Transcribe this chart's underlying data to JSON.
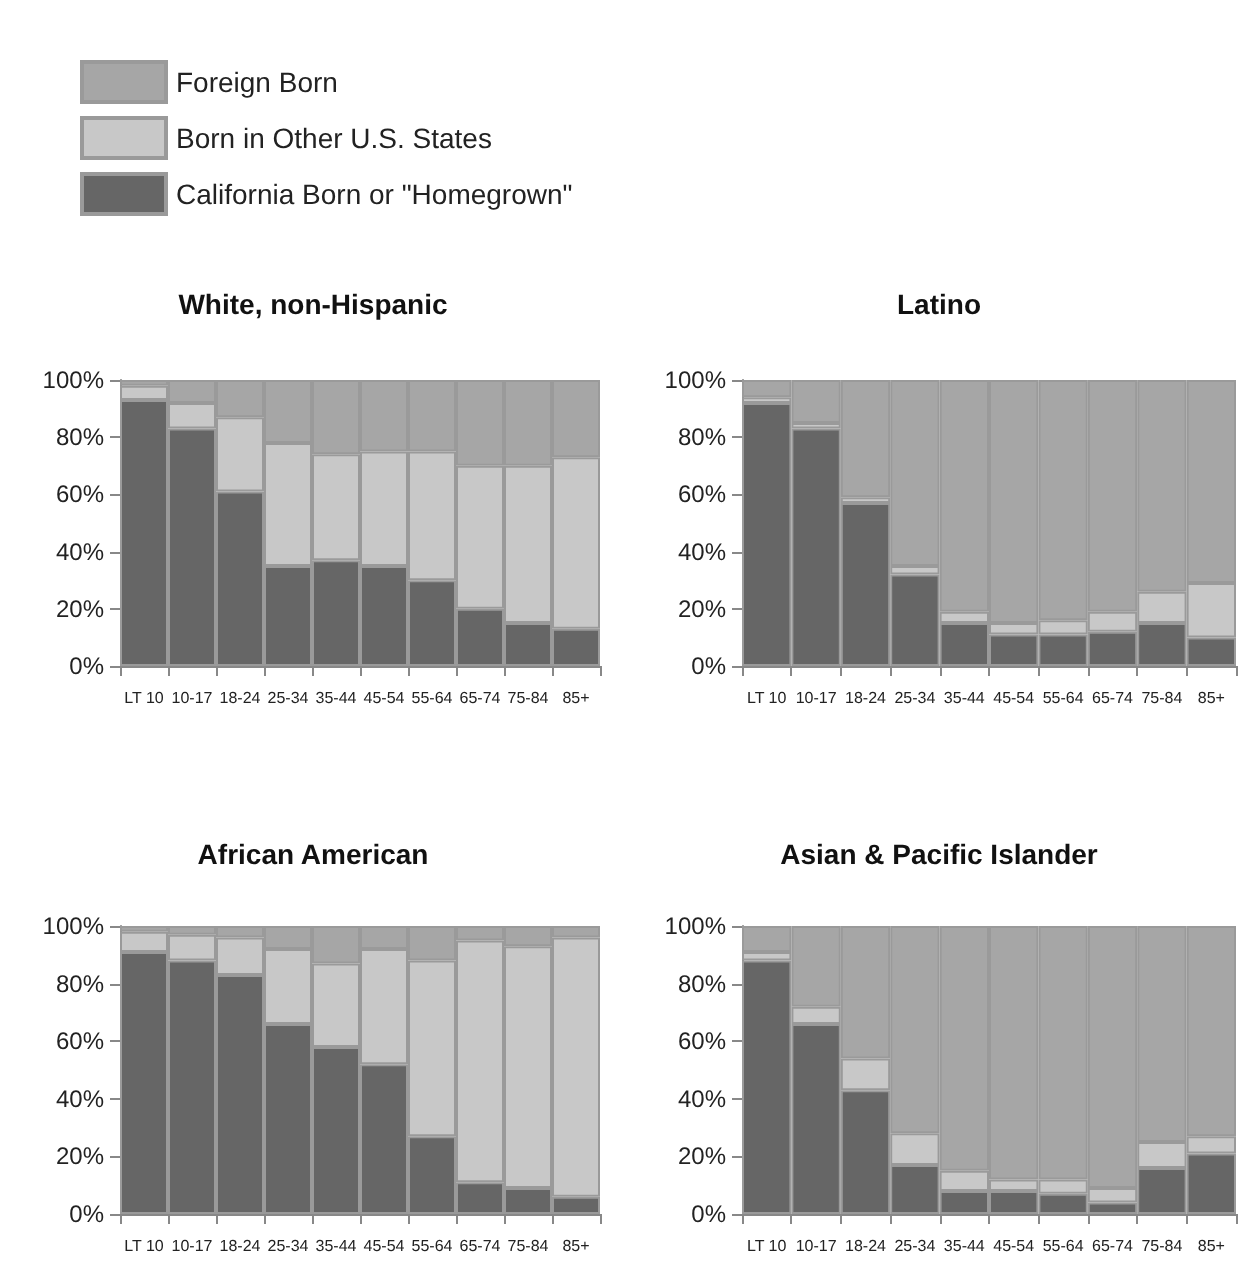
{
  "chart_data": [
    {
      "type": "bar",
      "title": "White, non-Hispanic",
      "stacked": true,
      "legend": "top",
      "categories": [
        "LT 10",
        "10-17",
        "18-24",
        "25-34",
        "35-44",
        "45-54",
        "55-64",
        "65-74",
        "75-84",
        "85+"
      ],
      "ylim": [
        0,
        100
      ],
      "yticks": [
        {
          "value": 0,
          "label": "0%"
        },
        {
          "value": 20,
          "label": "20%"
        },
        {
          "value": 40,
          "label": "40%"
        },
        {
          "value": 60,
          "label": "60%"
        },
        {
          "value": 80,
          "label": "80%"
        },
        {
          "value": 100,
          "label": "100%"
        }
      ],
      "series": [
        {
          "name": "California Born or \"Homegrown\"",
          "color": "#666666",
          "values": [
            93,
            83,
            61,
            35,
            37,
            35,
            30,
            20,
            15,
            13
          ]
        },
        {
          "name": "Born in Other U.S. States",
          "color": "#c8c8c8",
          "values": [
            5,
            9,
            26,
            43,
            37,
            40,
            45,
            50,
            55,
            60
          ]
        },
        {
          "name": "Foreign Born",
          "color": "#a6a6a6",
          "values": [
            2,
            8,
            13,
            22,
            26,
            25,
            25,
            30,
            30,
            27
          ]
        }
      ]
    },
    {
      "type": "bar",
      "title": "Latino",
      "stacked": true,
      "categories": [
        "LT 10",
        "10-17",
        "18-24",
        "25-34",
        "35-44",
        "45-54",
        "55-64",
        "65-74",
        "75-84",
        "85+"
      ],
      "ylim": [
        0,
        100
      ],
      "yticks": [
        {
          "value": 0,
          "label": "0%"
        },
        {
          "value": 20,
          "label": "20%"
        },
        {
          "value": 40,
          "label": "40%"
        },
        {
          "value": 60,
          "label": "60%"
        },
        {
          "value": 80,
          "label": "80%"
        },
        {
          "value": 100,
          "label": "100%"
        }
      ],
      "series": [
        {
          "color": "#666666",
          "values": [
            92,
            83,
            57,
            32,
            15,
            11,
            11,
            12,
            15,
            10
          ]
        },
        {
          "color": "#c8c8c8",
          "values": [
            2,
            2,
            2,
            3,
            4,
            4,
            5,
            7,
            11,
            19
          ]
        },
        {
          "color": "#a6a6a6",
          "values": [
            6,
            15,
            41,
            65,
            81,
            85,
            84,
            81,
            74,
            71
          ]
        }
      ]
    },
    {
      "type": "bar",
      "title": "African American",
      "stacked": true,
      "categories": [
        "LT 10",
        "10-17",
        "18-24",
        "25-34",
        "35-44",
        "45-54",
        "55-64",
        "65-74",
        "75-84",
        "85+"
      ],
      "ylim": [
        0,
        100
      ],
      "yticks": [
        {
          "value": 0,
          "label": "0%"
        },
        {
          "value": 20,
          "label": "20%"
        },
        {
          "value": 40,
          "label": "40%"
        },
        {
          "value": 60,
          "label": "60%"
        },
        {
          "value": 80,
          "label": "80%"
        },
        {
          "value": 100,
          "label": "100%"
        }
      ],
      "series": [
        {
          "color": "#666666",
          "values": [
            91,
            88,
            83,
            66,
            58,
            52,
            27,
            11,
            9,
            6
          ]
        },
        {
          "color": "#c8c8c8",
          "values": [
            7,
            9,
            13,
            26,
            29,
            40,
            61,
            84,
            84,
            90
          ]
        },
        {
          "color": "#a6a6a6",
          "values": [
            2,
            3,
            4,
            8,
            13,
            8,
            12,
            5,
            7,
            4
          ]
        }
      ]
    },
    {
      "type": "bar",
      "title": "Asian & Pacific Islander",
      "stacked": true,
      "categories": [
        "LT 10",
        "10-17",
        "18-24",
        "25-34",
        "35-44",
        "45-54",
        "55-64",
        "65-74",
        "75-84",
        "85+"
      ],
      "ylim": [
        0,
        100
      ],
      "yticks": [
        {
          "value": 0,
          "label": "0%"
        },
        {
          "value": 20,
          "label": "20%"
        },
        {
          "value": 40,
          "label": "40%"
        },
        {
          "value": 60,
          "label": "60%"
        },
        {
          "value": 80,
          "label": "80%"
        },
        {
          "value": 100,
          "label": "100%"
        }
      ],
      "series": [
        {
          "color": "#666666",
          "values": [
            88,
            66,
            43,
            17,
            8,
            8,
            7,
            4,
            16,
            21
          ]
        },
        {
          "color": "#c8c8c8",
          "values": [
            3,
            6,
            11,
            11,
            7,
            4,
            5,
            5,
            9,
            6
          ]
        },
        {
          "color": "#a6a6a6",
          "values": [
            9,
            28,
            46,
            72,
            85,
            88,
            88,
            91,
            75,
            73
          ]
        }
      ]
    }
  ]
}
